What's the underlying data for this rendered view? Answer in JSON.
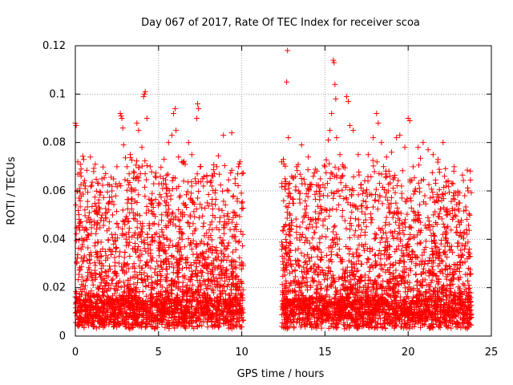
{
  "chart_data": {
    "type": "scatter",
    "title": "Day 067 of 2017, Rate Of TEC Index for receiver scoa",
    "xlabel": "GPS time / hours",
    "ylabel": "ROTI / TECUs",
    "xlim": [
      0,
      25
    ],
    "ylim": [
      0,
      0.12
    ],
    "x_ticks": [
      0,
      5,
      10,
      15,
      20,
      25
    ],
    "x_tick_labels": [
      "0",
      "5",
      "10",
      "15",
      "20",
      "25"
    ],
    "y_ticks": [
      0,
      0.02,
      0.04,
      0.06,
      0.08,
      0.1,
      0.12
    ],
    "y_tick_labels": [
      "0",
      "0.02",
      "0.04",
      "0.06",
      "0.08",
      "0.1",
      "0.12"
    ],
    "grid": true,
    "marker": "+",
    "marker_color": "#ff0000",
    "data_coverage_hours": [
      [
        0,
        10.1
      ],
      [
        12.4,
        23.8
      ]
    ],
    "series": [
      {
        "values": [
          [
            0.0,
            0.088
          ],
          [
            0.05,
            0.087
          ],
          [
            0.1,
            0.06
          ],
          [
            0.15,
            0.072
          ],
          [
            0.3,
            0.071
          ],
          [
            0.5,
            0.073
          ],
          [
            0.6,
            0.062
          ],
          [
            0.9,
            0.074
          ],
          [
            1.1,
            0.068
          ],
          [
            1.2,
            0.071
          ],
          [
            1.4,
            0.055
          ],
          [
            1.6,
            0.05
          ],
          [
            2.0,
            0.055
          ],
          [
            2.2,
            0.06
          ],
          [
            2.5,
            0.07
          ],
          [
            2.7,
            0.092
          ],
          [
            2.75,
            0.091
          ],
          [
            2.8,
            0.09
          ],
          [
            2.85,
            0.086
          ],
          [
            2.9,
            0.079
          ],
          [
            3.1,
            0.07
          ],
          [
            3.3,
            0.075
          ],
          [
            3.5,
            0.068
          ],
          [
            3.7,
            0.088
          ],
          [
            3.8,
            0.085
          ],
          [
            4.0,
            0.078
          ],
          [
            4.1,
            0.099
          ],
          [
            4.15,
            0.1
          ],
          [
            4.2,
            0.101
          ],
          [
            4.3,
            0.09
          ],
          [
            4.5,
            0.07
          ],
          [
            4.8,
            0.066
          ],
          [
            5.0,
            0.055
          ],
          [
            5.3,
            0.063
          ],
          [
            5.6,
            0.08
          ],
          [
            5.8,
            0.083
          ],
          [
            5.9,
            0.092
          ],
          [
            6.0,
            0.094
          ],
          [
            6.05,
            0.085
          ],
          [
            6.2,
            0.074
          ],
          [
            6.4,
            0.072
          ],
          [
            6.6,
            0.071
          ],
          [
            6.8,
            0.08
          ],
          [
            7.0,
            0.075
          ],
          [
            7.2,
            0.065
          ],
          [
            7.3,
            0.09
          ],
          [
            7.35,
            0.096
          ],
          [
            7.4,
            0.094
          ],
          [
            7.5,
            0.07
          ],
          [
            7.7,
            0.062
          ],
          [
            7.9,
            0.066
          ],
          [
            8.2,
            0.062
          ],
          [
            8.5,
            0.07
          ],
          [
            8.9,
            0.083
          ],
          [
            9.2,
            0.06
          ],
          [
            9.4,
            0.084
          ],
          [
            9.6,
            0.065
          ],
          [
            9.8,
            0.07
          ],
          [
            9.9,
            0.072
          ],
          [
            10.0,
            0.055
          ],
          [
            12.4,
            0.072
          ],
          [
            12.5,
            0.073
          ],
          [
            12.6,
            0.065
          ],
          [
            12.7,
            0.105
          ],
          [
            12.75,
            0.118
          ],
          [
            12.8,
            0.082
          ],
          [
            13.0,
            0.066
          ],
          [
            13.3,
            0.07
          ],
          [
            13.6,
            0.079
          ],
          [
            14.0,
            0.074
          ],
          [
            14.3,
            0.066
          ],
          [
            14.6,
            0.062
          ],
          [
            15.0,
            0.07
          ],
          [
            15.2,
            0.081
          ],
          [
            15.3,
            0.085
          ],
          [
            15.4,
            0.092
          ],
          [
            15.5,
            0.114
          ],
          [
            15.55,
            0.113
          ],
          [
            15.6,
            0.104
          ],
          [
            15.65,
            0.098
          ],
          [
            15.7,
            0.082
          ],
          [
            15.9,
            0.075
          ],
          [
            16.1,
            0.07
          ],
          [
            16.3,
            0.099
          ],
          [
            16.4,
            0.097
          ],
          [
            16.5,
            0.087
          ],
          [
            16.7,
            0.085
          ],
          [
            17.0,
            0.075
          ],
          [
            17.3,
            0.06
          ],
          [
            17.6,
            0.075
          ],
          [
            17.9,
            0.082
          ],
          [
            18.1,
            0.092
          ],
          [
            18.2,
            0.088
          ],
          [
            18.4,
            0.08
          ],
          [
            18.7,
            0.074
          ],
          [
            19.0,
            0.076
          ],
          [
            19.3,
            0.082
          ],
          [
            19.5,
            0.083
          ],
          [
            19.8,
            0.078
          ],
          [
            20.0,
            0.09
          ],
          [
            20.1,
            0.089
          ],
          [
            20.3,
            0.07
          ],
          [
            20.6,
            0.078
          ],
          [
            20.9,
            0.08
          ],
          [
            21.2,
            0.077
          ],
          [
            21.5,
            0.075
          ],
          [
            21.8,
            0.073
          ],
          [
            22.1,
            0.08
          ],
          [
            22.4,
            0.064
          ],
          [
            22.8,
            0.05
          ],
          [
            23.1,
            0.055
          ],
          [
            23.4,
            0.058
          ],
          [
            23.6,
            0.06
          ],
          [
            23.7,
            0.05
          ],
          [
            0.2,
            0.045
          ],
          [
            0.7,
            0.04
          ],
          [
            1.3,
            0.046
          ],
          [
            1.8,
            0.035
          ],
          [
            2.4,
            0.042
          ],
          [
            3.0,
            0.048
          ],
          [
            3.6,
            0.05
          ],
          [
            4.4,
            0.052
          ],
          [
            5.2,
            0.044
          ],
          [
            5.7,
            0.047
          ],
          [
            6.3,
            0.058
          ],
          [
            6.9,
            0.05
          ],
          [
            7.6,
            0.053
          ],
          [
            8.1,
            0.046
          ],
          [
            8.7,
            0.049
          ],
          [
            9.3,
            0.044
          ],
          [
            9.7,
            0.05
          ],
          [
            12.9,
            0.05
          ],
          [
            13.5,
            0.055
          ],
          [
            14.2,
            0.048
          ],
          [
            14.8,
            0.052
          ],
          [
            15.8,
            0.06
          ],
          [
            16.6,
            0.058
          ],
          [
            17.2,
            0.054
          ],
          [
            18.0,
            0.056
          ],
          [
            18.8,
            0.06
          ],
          [
            19.6,
            0.062
          ],
          [
            20.4,
            0.06
          ],
          [
            21.0,
            0.058
          ],
          [
            21.7,
            0.056
          ],
          [
            22.3,
            0.05
          ],
          [
            22.9,
            0.045
          ],
          [
            23.5,
            0.044
          ]
        ]
      }
    ]
  }
}
